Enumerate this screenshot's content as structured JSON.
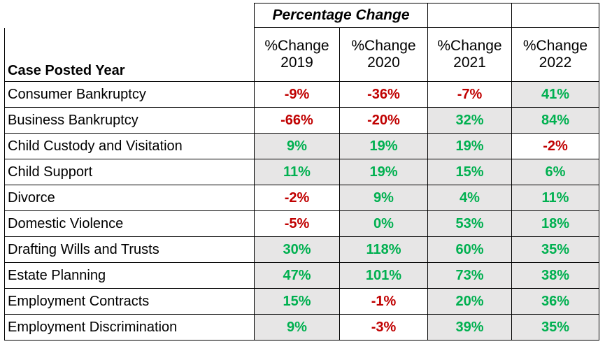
{
  "table": {
    "super_header": "Percentage Change",
    "row_header": "Case Posted Year",
    "columns": [
      {
        "line1": "%Change",
        "line2": "2019"
      },
      {
        "line1": "%Change",
        "line2": "2020"
      },
      {
        "line1": "%Change",
        "line2": "2021"
      },
      {
        "line1": "%Change",
        "line2": "2022"
      }
    ],
    "rows": [
      {
        "label": "Consumer Bankruptcy",
        "values": [
          "-9%",
          "-36%",
          "-7%",
          "41%"
        ],
        "shaded": [
          false,
          false,
          false,
          true
        ]
      },
      {
        "label": "Business Bankruptcy",
        "values": [
          "-66%",
          "-20%",
          "32%",
          "84%"
        ],
        "shaded": [
          false,
          false,
          true,
          true
        ]
      },
      {
        "label": "Child Custody and Visitation",
        "values": [
          "9%",
          "19%",
          "19%",
          "-2%"
        ],
        "shaded": [
          true,
          true,
          true,
          false
        ]
      },
      {
        "label": "Child Support",
        "values": [
          "11%",
          "19%",
          "15%",
          "6%"
        ],
        "shaded": [
          true,
          true,
          true,
          true
        ]
      },
      {
        "label": "Divorce",
        "values": [
          "-2%",
          "9%",
          "4%",
          "11%"
        ],
        "shaded": [
          false,
          true,
          true,
          true
        ]
      },
      {
        "label": "Domestic Violence",
        "values": [
          "-5%",
          "0%",
          "53%",
          "18%"
        ],
        "shaded": [
          false,
          true,
          true,
          true
        ]
      },
      {
        "label": "Drafting Wills and Trusts",
        "values": [
          "30%",
          "118%",
          "60%",
          "35%"
        ],
        "shaded": [
          true,
          true,
          true,
          true
        ]
      },
      {
        "label": "Estate Planning",
        "values": [
          "47%",
          "101%",
          "73%",
          "38%"
        ],
        "shaded": [
          true,
          true,
          true,
          true
        ]
      },
      {
        "label": "Employment Contracts",
        "values": [
          "15%",
          "-1%",
          "20%",
          "36%"
        ],
        "shaded": [
          true,
          false,
          true,
          true
        ]
      },
      {
        "label": "Employment Discrimination",
        "values": [
          "9%",
          "-3%",
          "39%",
          "35%"
        ],
        "shaded": [
          true,
          false,
          true,
          true
        ]
      }
    ],
    "colors": {
      "negative": "#c00000",
      "positive": "#00b050",
      "shade": "#e7e6e6"
    }
  }
}
